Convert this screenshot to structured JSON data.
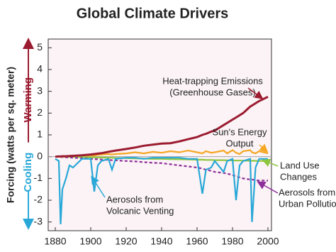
{
  "chart_data": {
    "type": "line",
    "title": "Global Climate Drivers",
    "ylabel": "Forcing (watts per sq. meter)",
    "direction_labels": [
      {
        "text": "Warming",
        "color": "#9b1b30"
      },
      {
        "text": "Cooling",
        "color": "#29a8d8"
      }
    ],
    "x": [
      1880,
      1882,
      1883,
      1884,
      1886,
      1888,
      1890,
      1895,
      1900,
      1902,
      1904,
      1906,
      1910,
      1912,
      1914,
      1920,
      1925,
      1930,
      1935,
      1940,
      1945,
      1950,
      1955,
      1960,
      1963,
      1965,
      1968,
      1970,
      1975,
      1977,
      1980,
      1982,
      1984,
      1986,
      1990,
      1991,
      1993,
      1995,
      2000
    ],
    "series": [
      {
        "name": "Land Use Changes",
        "color": "#8dc63f",
        "dashed": false,
        "values": [
          0,
          0,
          0,
          0,
          0,
          -0.01,
          -0.01,
          -0.02,
          -0.03,
          -0.03,
          -0.04,
          -0.04,
          -0.05,
          -0.05,
          -0.06,
          -0.07,
          -0.08,
          -0.09,
          -0.1,
          -0.1,
          -0.11,
          -0.12,
          -0.13,
          -0.14,
          -0.14,
          -0.15,
          -0.15,
          -0.16,
          -0.16,
          -0.17,
          -0.17,
          -0.18,
          -0.18,
          -0.18,
          -0.19,
          -0.19,
          -0.19,
          -0.2,
          -0.2
        ]
      },
      {
        "name": "Aerosols from Urban Pollution",
        "color": "#8e2e9b",
        "dashed": true,
        "values": [
          0,
          -0.01,
          -0.01,
          -0.02,
          -0.03,
          -0.04,
          -0.05,
          -0.07,
          -0.1,
          -0.11,
          -0.12,
          -0.13,
          -0.15,
          -0.16,
          -0.17,
          -0.2,
          -0.22,
          -0.25,
          -0.28,
          -0.3,
          -0.35,
          -0.4,
          -0.45,
          -0.5,
          -0.55,
          -0.6,
          -0.65,
          -0.7,
          -0.75,
          -0.78,
          -0.85,
          -0.9,
          -0.95,
          -1.0,
          -1.05,
          -1.05,
          -1.08,
          -1.1,
          -1.1
        ]
      },
      {
        "name": "Aerosols from Volcanic Venting",
        "color": "#29a8d8",
        "dashed": false,
        "values": [
          -0.1,
          -0.2,
          -3.1,
          -1.5,
          -1.0,
          -0.4,
          -0.5,
          -0.1,
          -0.1,
          -1.6,
          -0.4,
          -0.2,
          -0.1,
          -0.6,
          -0.1,
          -0.05,
          -0.05,
          -0.1,
          -0.05,
          -0.05,
          -0.05,
          -0.05,
          -0.1,
          -0.1,
          -1.7,
          -0.6,
          -0.5,
          -0.2,
          -0.7,
          -0.2,
          -0.1,
          -2.0,
          -0.4,
          -0.2,
          -0.1,
          -3.0,
          -0.5,
          -0.1,
          -0.1
        ]
      },
      {
        "name": "Sun's Energy Output",
        "color": "#f5a623",
        "dashed": false,
        "values": [
          0,
          0,
          0,
          0,
          0,
          0.02,
          0.03,
          0.05,
          0.05,
          0.05,
          0.08,
          0.1,
          0.12,
          0.1,
          0.12,
          0.15,
          0.2,
          0.15,
          0.22,
          0.18,
          0.25,
          0.2,
          0.28,
          0.2,
          0.15,
          0.25,
          0.18,
          0.2,
          0.28,
          0.15,
          0.3,
          0.18,
          0.12,
          0.25,
          0.3,
          0.2,
          0.15,
          0.25,
          0.15
        ]
      },
      {
        "name": "Heat-trapping Emissions (Greenhouse Gases)",
        "color": "#9b1b30",
        "dashed": false,
        "values": [
          0,
          0.01,
          0.01,
          0.02,
          0.02,
          0.03,
          0.04,
          0.06,
          0.1,
          0.12,
          0.14,
          0.16,
          0.22,
          0.25,
          0.28,
          0.35,
          0.42,
          0.5,
          0.55,
          0.6,
          0.62,
          0.7,
          0.8,
          0.9,
          1.0,
          1.05,
          1.15,
          1.2,
          1.45,
          1.55,
          1.7,
          1.8,
          1.9,
          2.0,
          2.3,
          2.35,
          2.45,
          2.55,
          2.75
        ]
      }
    ],
    "annotations": [
      {
        "lines": [
          "Land Use",
          "Changes"
        ]
      },
      {
        "lines": [
          "Aerosols from",
          "Urban Pollution"
        ]
      },
      {
        "lines": [
          "Aerosols from",
          "Volcanic Venting"
        ]
      },
      {
        "lines": [
          "Sun's Energy",
          "Output"
        ]
      },
      {
        "lines": [
          "Heat-trapping Emissions",
          "(Greenhouse Gases)"
        ]
      }
    ],
    "xlim": [
      1876,
      2002
    ],
    "xticks": [
      1880,
      1900,
      1920,
      1940,
      1960,
      1980,
      2000
    ],
    "ylim": [
      -3.4,
      5.4
    ],
    "yticks": [
      -3,
      -2,
      -1,
      0,
      1,
      2,
      3,
      4,
      5
    ],
    "grid": false
  }
}
